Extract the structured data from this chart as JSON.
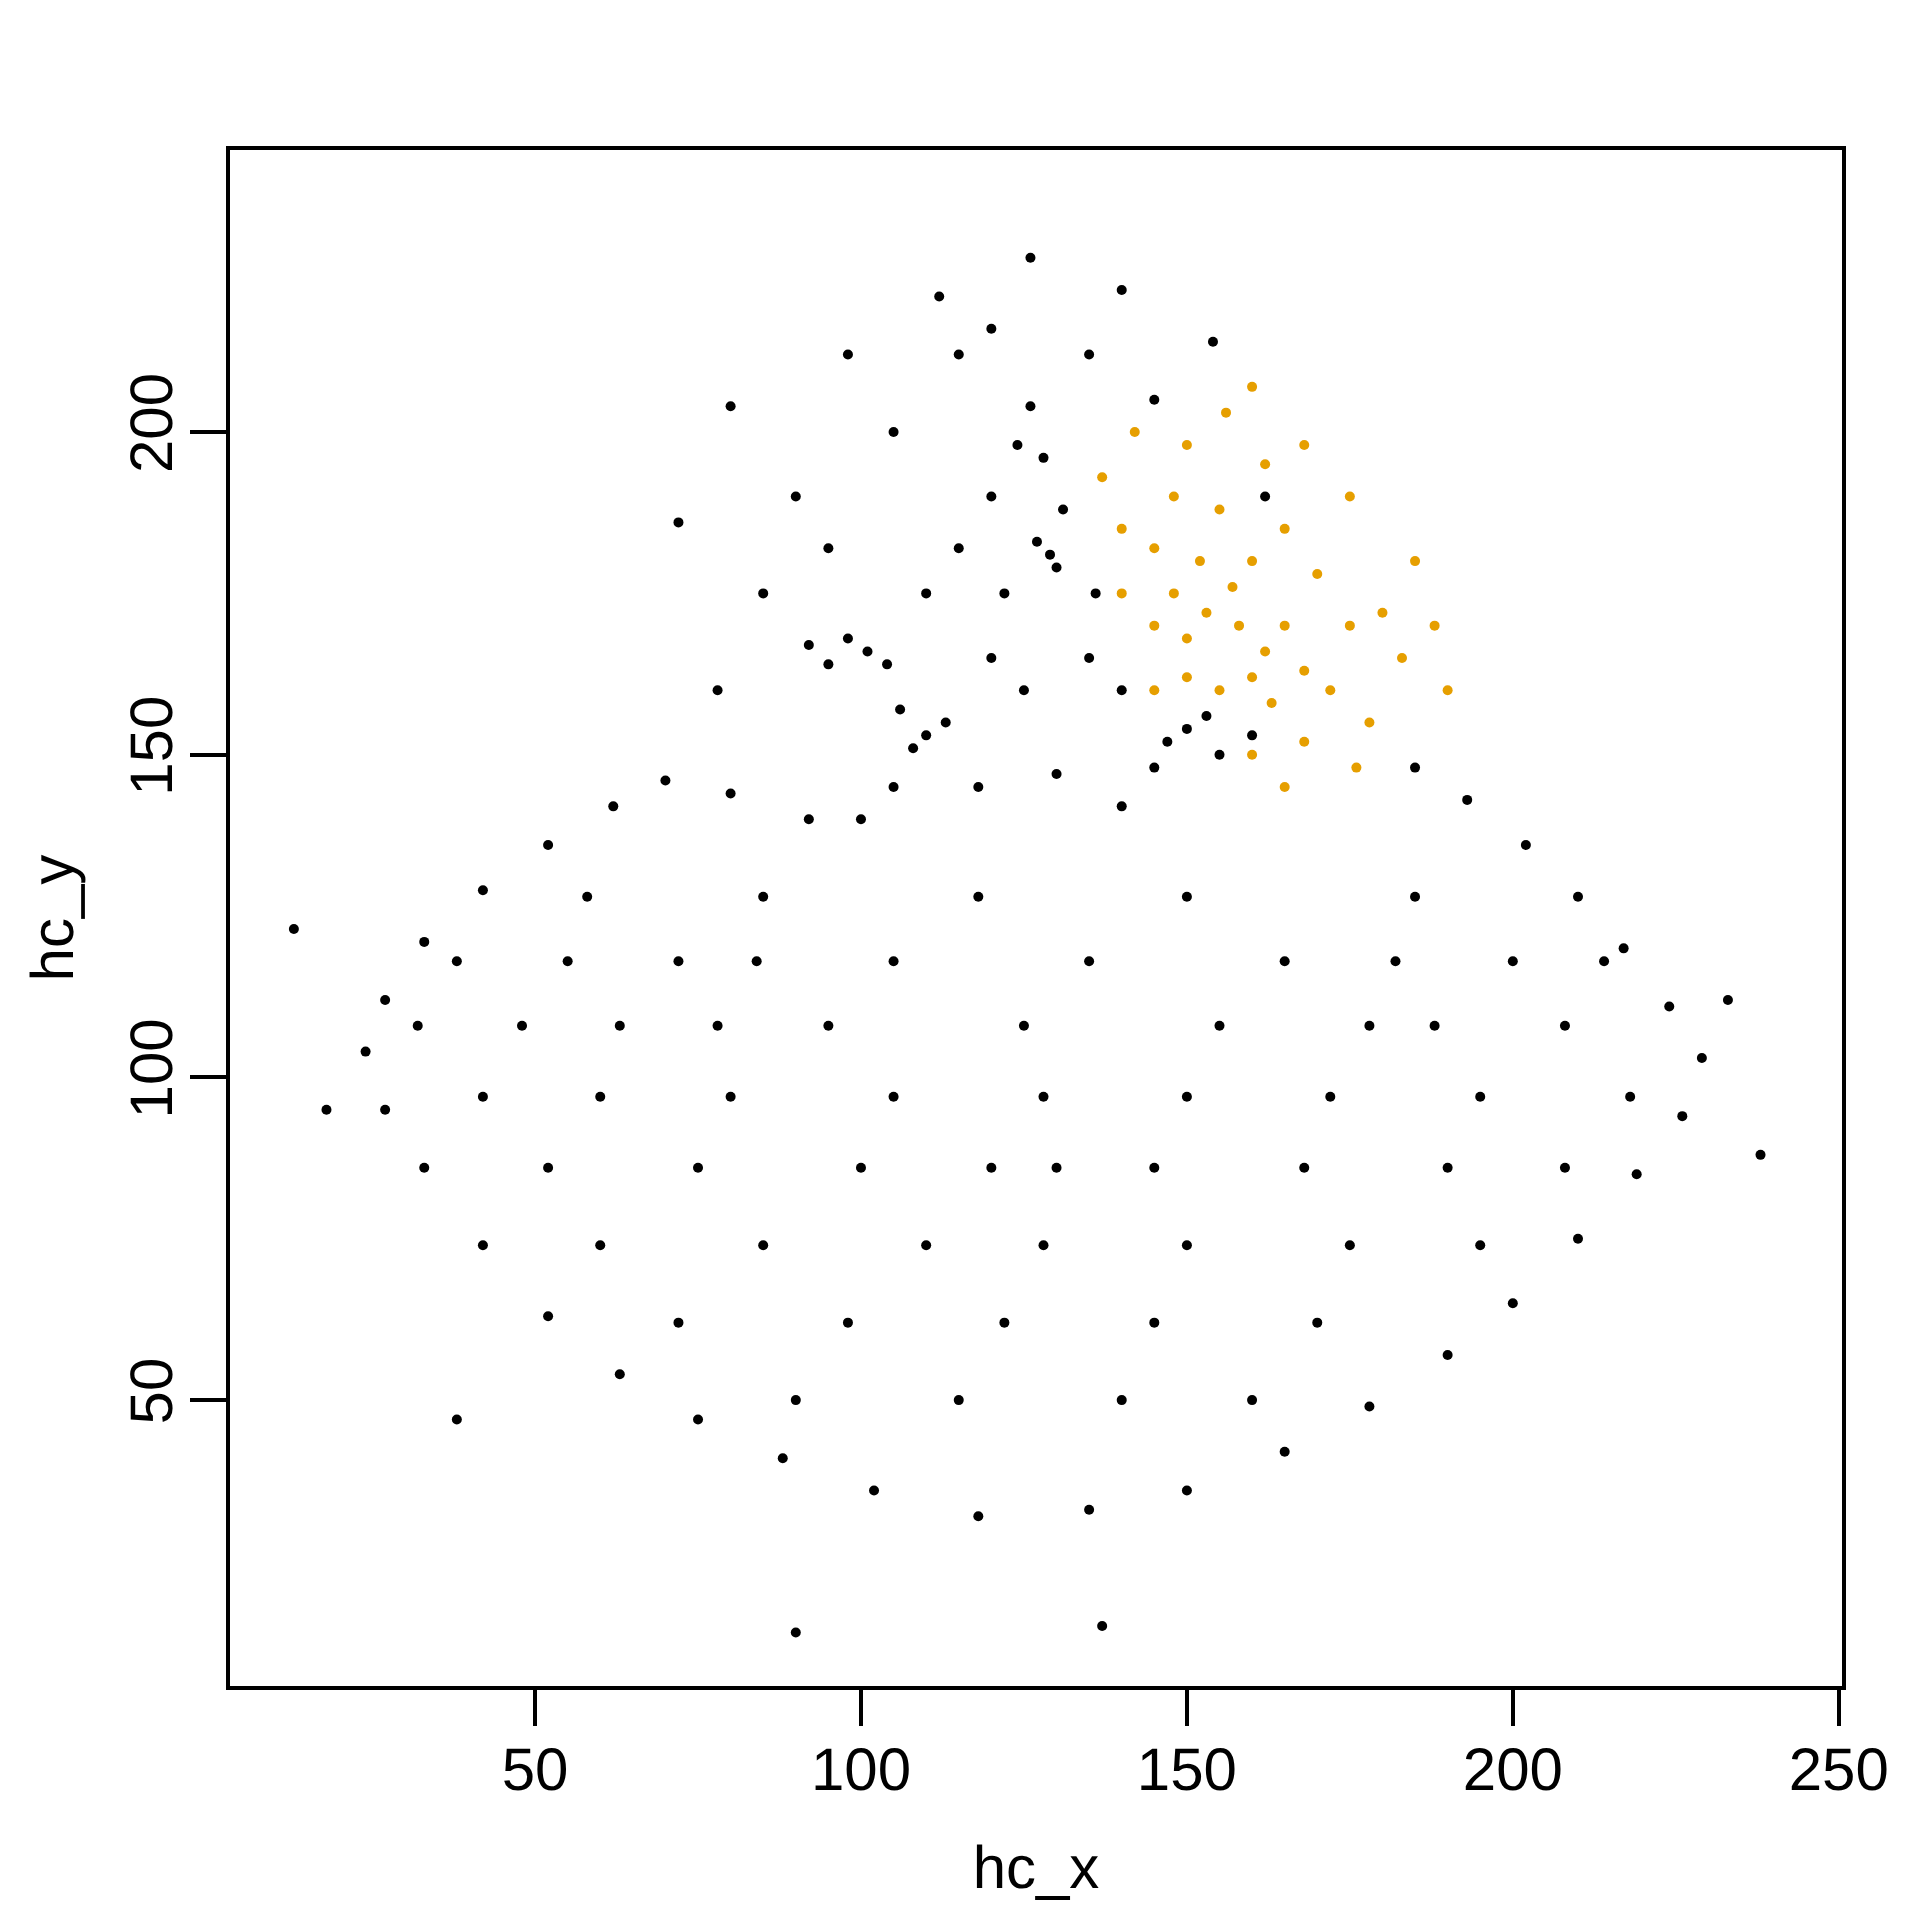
{
  "chart_data": {
    "type": "scatter",
    "xlabel": "hc_x",
    "ylabel": "hc_y",
    "xlim": [
      3.2,
      250.5
    ],
    "ylim": [
      5.7,
      243.7
    ],
    "xticks": [
      50,
      100,
      150,
      200,
      250
    ],
    "yticks": [
      50,
      100,
      150,
      200
    ],
    "marker": "circle",
    "series": [
      {
        "color": "#000000",
        "x": [
          13,
          18,
          38,
          90,
          137,
          238,
          233,
          126,
          112,
          140,
          98,
          154,
          80,
          72,
          85,
          90,
          105,
          115,
          135,
          145,
          162,
          78,
          95,
          120,
          126,
          124,
          128,
          120,
          131,
          115,
          129,
          127,
          130,
          110,
          122,
          136,
          101,
          98,
          104,
          95,
          92,
          110,
          108,
          113,
          106,
          120,
          125,
          135,
          140,
          150,
          147,
          153,
          145,
          130,
          118,
          105,
          140,
          100,
          155,
          160,
          24,
          27,
          33,
          42,
          52,
          62,
          70,
          80,
          92,
          185,
          193,
          202,
          210,
          217,
          224,
          229,
          226,
          219,
          210,
          200,
          190,
          178,
          165,
          150,
          135,
          118,
          102,
          88,
          75,
          63,
          52,
          42,
          33,
          27,
          58,
          85,
          118,
          150,
          185,
          38,
          55,
          72,
          84,
          105,
          135,
          165,
          182,
          200,
          214,
          32,
          48,
          63,
          78,
          95,
          125,
          155,
          178,
          188,
          208,
          42,
          60,
          80,
          105,
          128,
          150,
          172,
          195,
          218,
          52,
          75,
          100,
          120,
          130,
          145,
          168,
          190,
          208,
          60,
          85,
          110,
          128,
          150,
          175,
          195,
          72,
          98,
          122,
          145,
          170,
          90,
          115,
          140,
          160
        ],
        "values": [
          123,
          95,
          47,
          14,
          15,
          88,
          112,
          227,
          221,
          222,
          212,
          214,
          204,
          186,
          175,
          190,
          200,
          212,
          212,
          205,
          190,
          160,
          182,
          216,
          204,
          198,
          196,
          190,
          188,
          182,
          181,
          183,
          179,
          175,
          175,
          175,
          166,
          168,
          164,
          164,
          167,
          153,
          151,
          155,
          157,
          165,
          160,
          165,
          160,
          154,
          152,
          156,
          148,
          147,
          145,
          145,
          142,
          140,
          150,
          153,
          104,
          112,
          121,
          129,
          136,
          142,
          146,
          144,
          140,
          148,
          143,
          136,
          128,
          120,
          111,
          103,
          94,
          85,
          75,
          65,
          57,
          49,
          42,
          36,
          33,
          32,
          36,
          41,
          47,
          54,
          63,
          74,
          86,
          95,
          128,
          128,
          128,
          128,
          128,
          118,
          118,
          118,
          118,
          118,
          118,
          118,
          118,
          118,
          118,
          108,
          108,
          108,
          108,
          108,
          108,
          108,
          108,
          108,
          108,
          97,
          97,
          97,
          97,
          97,
          97,
          97,
          97,
          97,
          86,
          86,
          86,
          86,
          86,
          86,
          86,
          86,
          86,
          74,
          74,
          74,
          74,
          74,
          74,
          74,
          62,
          62,
          62,
          62,
          62,
          50,
          50,
          50,
          50
        ]
      },
      {
        "color": "#e69f00",
        "x": [
          150,
          153,
          158,
          162,
          160,
          155,
          150,
          165,
          157,
          148,
          145,
          163,
          168,
          152,
          160,
          145,
          140,
          148,
          155,
          165,
          170,
          175,
          172,
          168,
          160,
          178,
          180,
          185,
          175,
          162,
          150,
          142,
          156,
          168,
          183,
          188,
          176,
          165,
          145,
          140,
          190,
          160,
          137
        ],
        "values": [
          168,
          172,
          170,
          166,
          162,
          160,
          162,
          170,
          176,
          175,
          170,
          158,
          163,
          180,
          180,
          182,
          185,
          190,
          188,
          185,
          178,
          170,
          160,
          152,
          150,
          155,
          172,
          180,
          190,
          195,
          198,
          200,
          203,
          198,
          165,
          170,
          148,
          145,
          160,
          175,
          160,
          207,
          193
        ]
      }
    ]
  }
}
